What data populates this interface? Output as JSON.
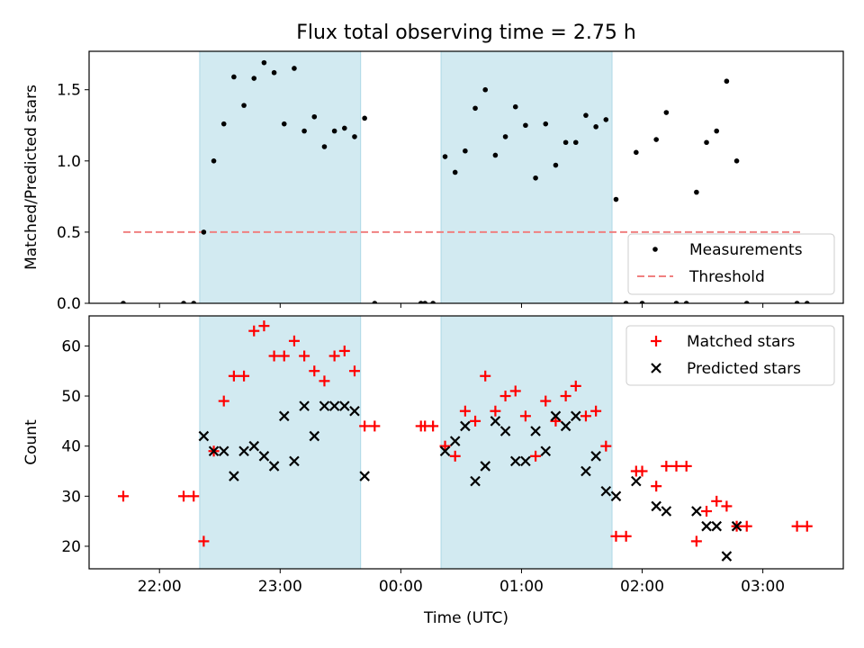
{
  "title": "Flux total observing time = 2.75 h",
  "colors": {
    "shade": "#add8e6",
    "measurement": "#000000",
    "threshold": "#f08080",
    "matched": "#ff0000",
    "predicted": "#000000"
  },
  "chart_data": [
    {
      "type": "scatter",
      "panel": "top",
      "xlabel": "",
      "ylabel": "Matched/Predicted stars",
      "xlim": [
        "21:25",
        "03:40"
      ],
      "ylim": [
        0,
        1.77
      ],
      "yticks": [
        "0.0",
        "0.5",
        "1.0",
        "1.5"
      ],
      "grid": false,
      "legend_position": "lower-right",
      "shaded_intervals": [
        [
          "22:20",
          "23:40"
        ],
        [
          "00:20",
          "01:45"
        ]
      ],
      "threshold": {
        "name": "Threshold",
        "y": 0.5,
        "x_start": "21:42",
        "x_end": "03:20"
      },
      "series": [
        {
          "name": "Measurements",
          "points": [
            [
              "21:42",
              0.0
            ],
            [
              "22:12",
              0.0
            ],
            [
              "22:17",
              0.0
            ],
            [
              "22:22",
              0.5
            ],
            [
              "22:27",
              1.0
            ],
            [
              "22:32",
              1.26
            ],
            [
              "22:37",
              1.59
            ],
            [
              "22:42",
              1.39
            ],
            [
              "22:47",
              1.58
            ],
            [
              "22:52",
              1.69
            ],
            [
              "22:57",
              1.62
            ],
            [
              "23:02",
              1.26
            ],
            [
              "23:07",
              1.65
            ],
            [
              "23:12",
              1.21
            ],
            [
              "23:17",
              1.31
            ],
            [
              "23:22",
              1.1
            ],
            [
              "23:27",
              1.21
            ],
            [
              "23:32",
              1.23
            ],
            [
              "23:37",
              1.17
            ],
            [
              "23:42",
              1.3
            ],
            [
              "23:47",
              0.0
            ],
            [
              "00:10",
              0.0
            ],
            [
              "00:12",
              0.0
            ],
            [
              "00:16",
              0.0
            ],
            [
              "00:22",
              1.03
            ],
            [
              "00:27",
              0.92
            ],
            [
              "00:32",
              1.07
            ],
            [
              "00:37",
              1.37
            ],
            [
              "00:42",
              1.5
            ],
            [
              "00:47",
              1.04
            ],
            [
              "00:52",
              1.17
            ],
            [
              "00:57",
              1.38
            ],
            [
              "01:02",
              1.25
            ],
            [
              "01:07",
              0.88
            ],
            [
              "01:12",
              1.26
            ],
            [
              "01:17",
              0.97
            ],
            [
              "01:22",
              1.13
            ],
            [
              "01:27",
              1.13
            ],
            [
              "01:32",
              1.32
            ],
            [
              "01:37",
              1.24
            ],
            [
              "01:42",
              1.29
            ],
            [
              "01:47",
              0.73
            ],
            [
              "01:52",
              0.0
            ],
            [
              "01:57",
              1.06
            ],
            [
              "02:00",
              0.0
            ],
            [
              "02:07",
              1.15
            ],
            [
              "02:12",
              1.34
            ],
            [
              "02:17",
              0.0
            ],
            [
              "02:22",
              0.0
            ],
            [
              "02:27",
              0.78
            ],
            [
              "02:32",
              1.13
            ],
            [
              "02:37",
              1.21
            ],
            [
              "02:42",
              1.56
            ],
            [
              "02:47",
              1.0
            ],
            [
              "02:52",
              0.0
            ],
            [
              "03:17",
              0.0
            ],
            [
              "03:22",
              0.0
            ]
          ]
        }
      ]
    },
    {
      "type": "scatter",
      "panel": "bottom",
      "xlabel": "Time (UTC)",
      "ylabel": "Count",
      "xlim": [
        "21:25",
        "03:40"
      ],
      "ylim": [
        15.5,
        66
      ],
      "xticks": [
        "22:00",
        "23:00",
        "00:00",
        "01:00",
        "02:00",
        "03:00"
      ],
      "yticks": [
        "20",
        "30",
        "40",
        "50",
        "60"
      ],
      "grid": false,
      "legend_position": "upper-right",
      "shaded_intervals": [
        [
          "22:20",
          "23:40"
        ],
        [
          "00:20",
          "01:45"
        ]
      ],
      "series": [
        {
          "name": "Matched stars",
          "points": [
            [
              "21:42",
              30
            ],
            [
              "22:12",
              30
            ],
            [
              "22:17",
              30
            ],
            [
              "22:22",
              21
            ],
            [
              "22:27",
              39
            ],
            [
              "22:32",
              49
            ],
            [
              "22:37",
              54
            ],
            [
              "22:42",
              54
            ],
            [
              "22:47",
              63
            ],
            [
              "22:52",
              64
            ],
            [
              "22:57",
              58
            ],
            [
              "23:02",
              58
            ],
            [
              "23:07",
              61
            ],
            [
              "23:12",
              58
            ],
            [
              "23:17",
              55
            ],
            [
              "23:22",
              53
            ],
            [
              "23:27",
              58
            ],
            [
              "23:32",
              59
            ],
            [
              "23:37",
              55
            ],
            [
              "23:42",
              44
            ],
            [
              "23:47",
              44
            ],
            [
              "00:10",
              44
            ],
            [
              "00:12",
              44
            ],
            [
              "00:16",
              44
            ],
            [
              "00:22",
              40
            ],
            [
              "00:27",
              38
            ],
            [
              "00:32",
              47
            ],
            [
              "00:37",
              45
            ],
            [
              "00:42",
              54
            ],
            [
              "00:47",
              47
            ],
            [
              "00:52",
              50
            ],
            [
              "00:57",
              51
            ],
            [
              "01:02",
              46
            ],
            [
              "01:07",
              38
            ],
            [
              "01:12",
              49
            ],
            [
              "01:17",
              45
            ],
            [
              "01:22",
              50
            ],
            [
              "01:27",
              52
            ],
            [
              "01:32",
              46
            ],
            [
              "01:37",
              47
            ],
            [
              "01:42",
              40
            ],
            [
              "01:47",
              22
            ],
            [
              "01:52",
              22
            ],
            [
              "01:57",
              35
            ],
            [
              "02:00",
              35
            ],
            [
              "02:07",
              32
            ],
            [
              "02:12",
              36
            ],
            [
              "02:17",
              36
            ],
            [
              "02:22",
              36
            ],
            [
              "02:27",
              21
            ],
            [
              "02:32",
              27
            ],
            [
              "02:37",
              29
            ],
            [
              "02:42",
              28
            ],
            [
              "02:47",
              24
            ],
            [
              "02:52",
              24
            ],
            [
              "03:17",
              24
            ],
            [
              "03:22",
              24
            ]
          ]
        },
        {
          "name": "Predicted stars",
          "points": [
            [
              "22:22",
              42
            ],
            [
              "22:27",
              39
            ],
            [
              "22:32",
              39
            ],
            [
              "22:37",
              34
            ],
            [
              "22:42",
              39
            ],
            [
              "22:47",
              40
            ],
            [
              "22:52",
              38
            ],
            [
              "22:57",
              36
            ],
            [
              "23:02",
              46
            ],
            [
              "23:07",
              37
            ],
            [
              "23:12",
              48
            ],
            [
              "23:17",
              42
            ],
            [
              "23:22",
              48
            ],
            [
              "23:27",
              48
            ],
            [
              "23:32",
              48
            ],
            [
              "23:37",
              47
            ],
            [
              "23:42",
              34
            ],
            [
              "00:22",
              39
            ],
            [
              "00:27",
              41
            ],
            [
              "00:32",
              44
            ],
            [
              "00:37",
              33
            ],
            [
              "00:42",
              36
            ],
            [
              "00:47",
              45
            ],
            [
              "00:52",
              43
            ],
            [
              "00:57",
              37
            ],
            [
              "01:02",
              37
            ],
            [
              "01:07",
              43
            ],
            [
              "01:12",
              39
            ],
            [
              "01:17",
              46
            ],
            [
              "01:22",
              44
            ],
            [
              "01:27",
              46
            ],
            [
              "01:32",
              35
            ],
            [
              "01:37",
              38
            ],
            [
              "01:42",
              31
            ],
            [
              "01:47",
              30
            ],
            [
              "01:57",
              33
            ],
            [
              "02:07",
              28
            ],
            [
              "02:12",
              27
            ],
            [
              "02:27",
              27
            ],
            [
              "02:32",
              24
            ],
            [
              "02:37",
              24
            ],
            [
              "02:42",
              18
            ],
            [
              "02:47",
              24
            ]
          ]
        }
      ]
    }
  ]
}
